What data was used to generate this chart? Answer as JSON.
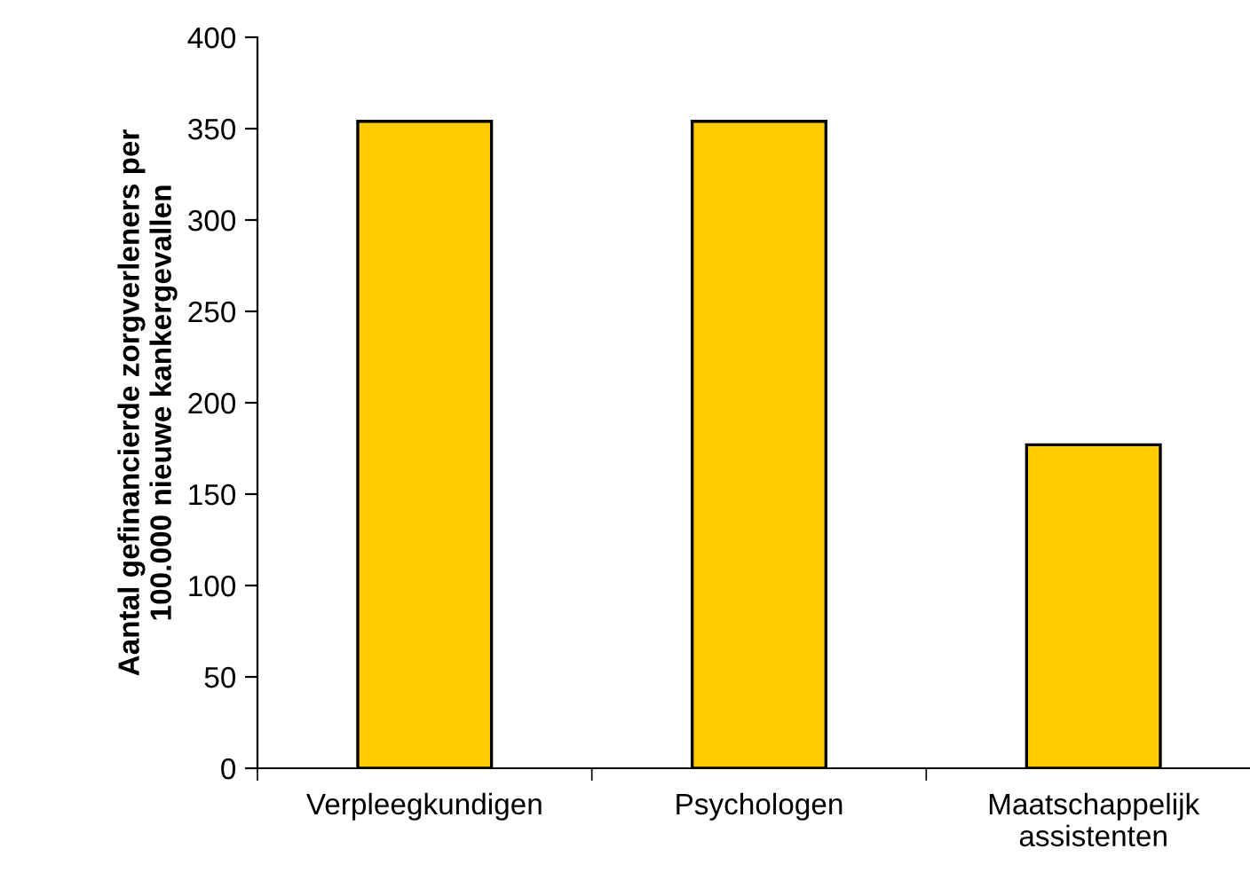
{
  "chart_data": {
    "type": "bar",
    "ylabel": "Aantal gefinancierde zorgverleners per\n100.000 nieuwe kankergevallen",
    "categories": [
      "Verpleegkundigen",
      "Psychologen",
      "Maatschappelijk\nassistenten"
    ],
    "values": [
      354,
      354,
      177
    ],
    "color": "#ffcc00",
    "ylim": [
      0,
      400
    ],
    "yticks": [
      0,
      50,
      100,
      150,
      200,
      250,
      300,
      350,
      400
    ],
    "grid": false,
    "legend": false
  }
}
